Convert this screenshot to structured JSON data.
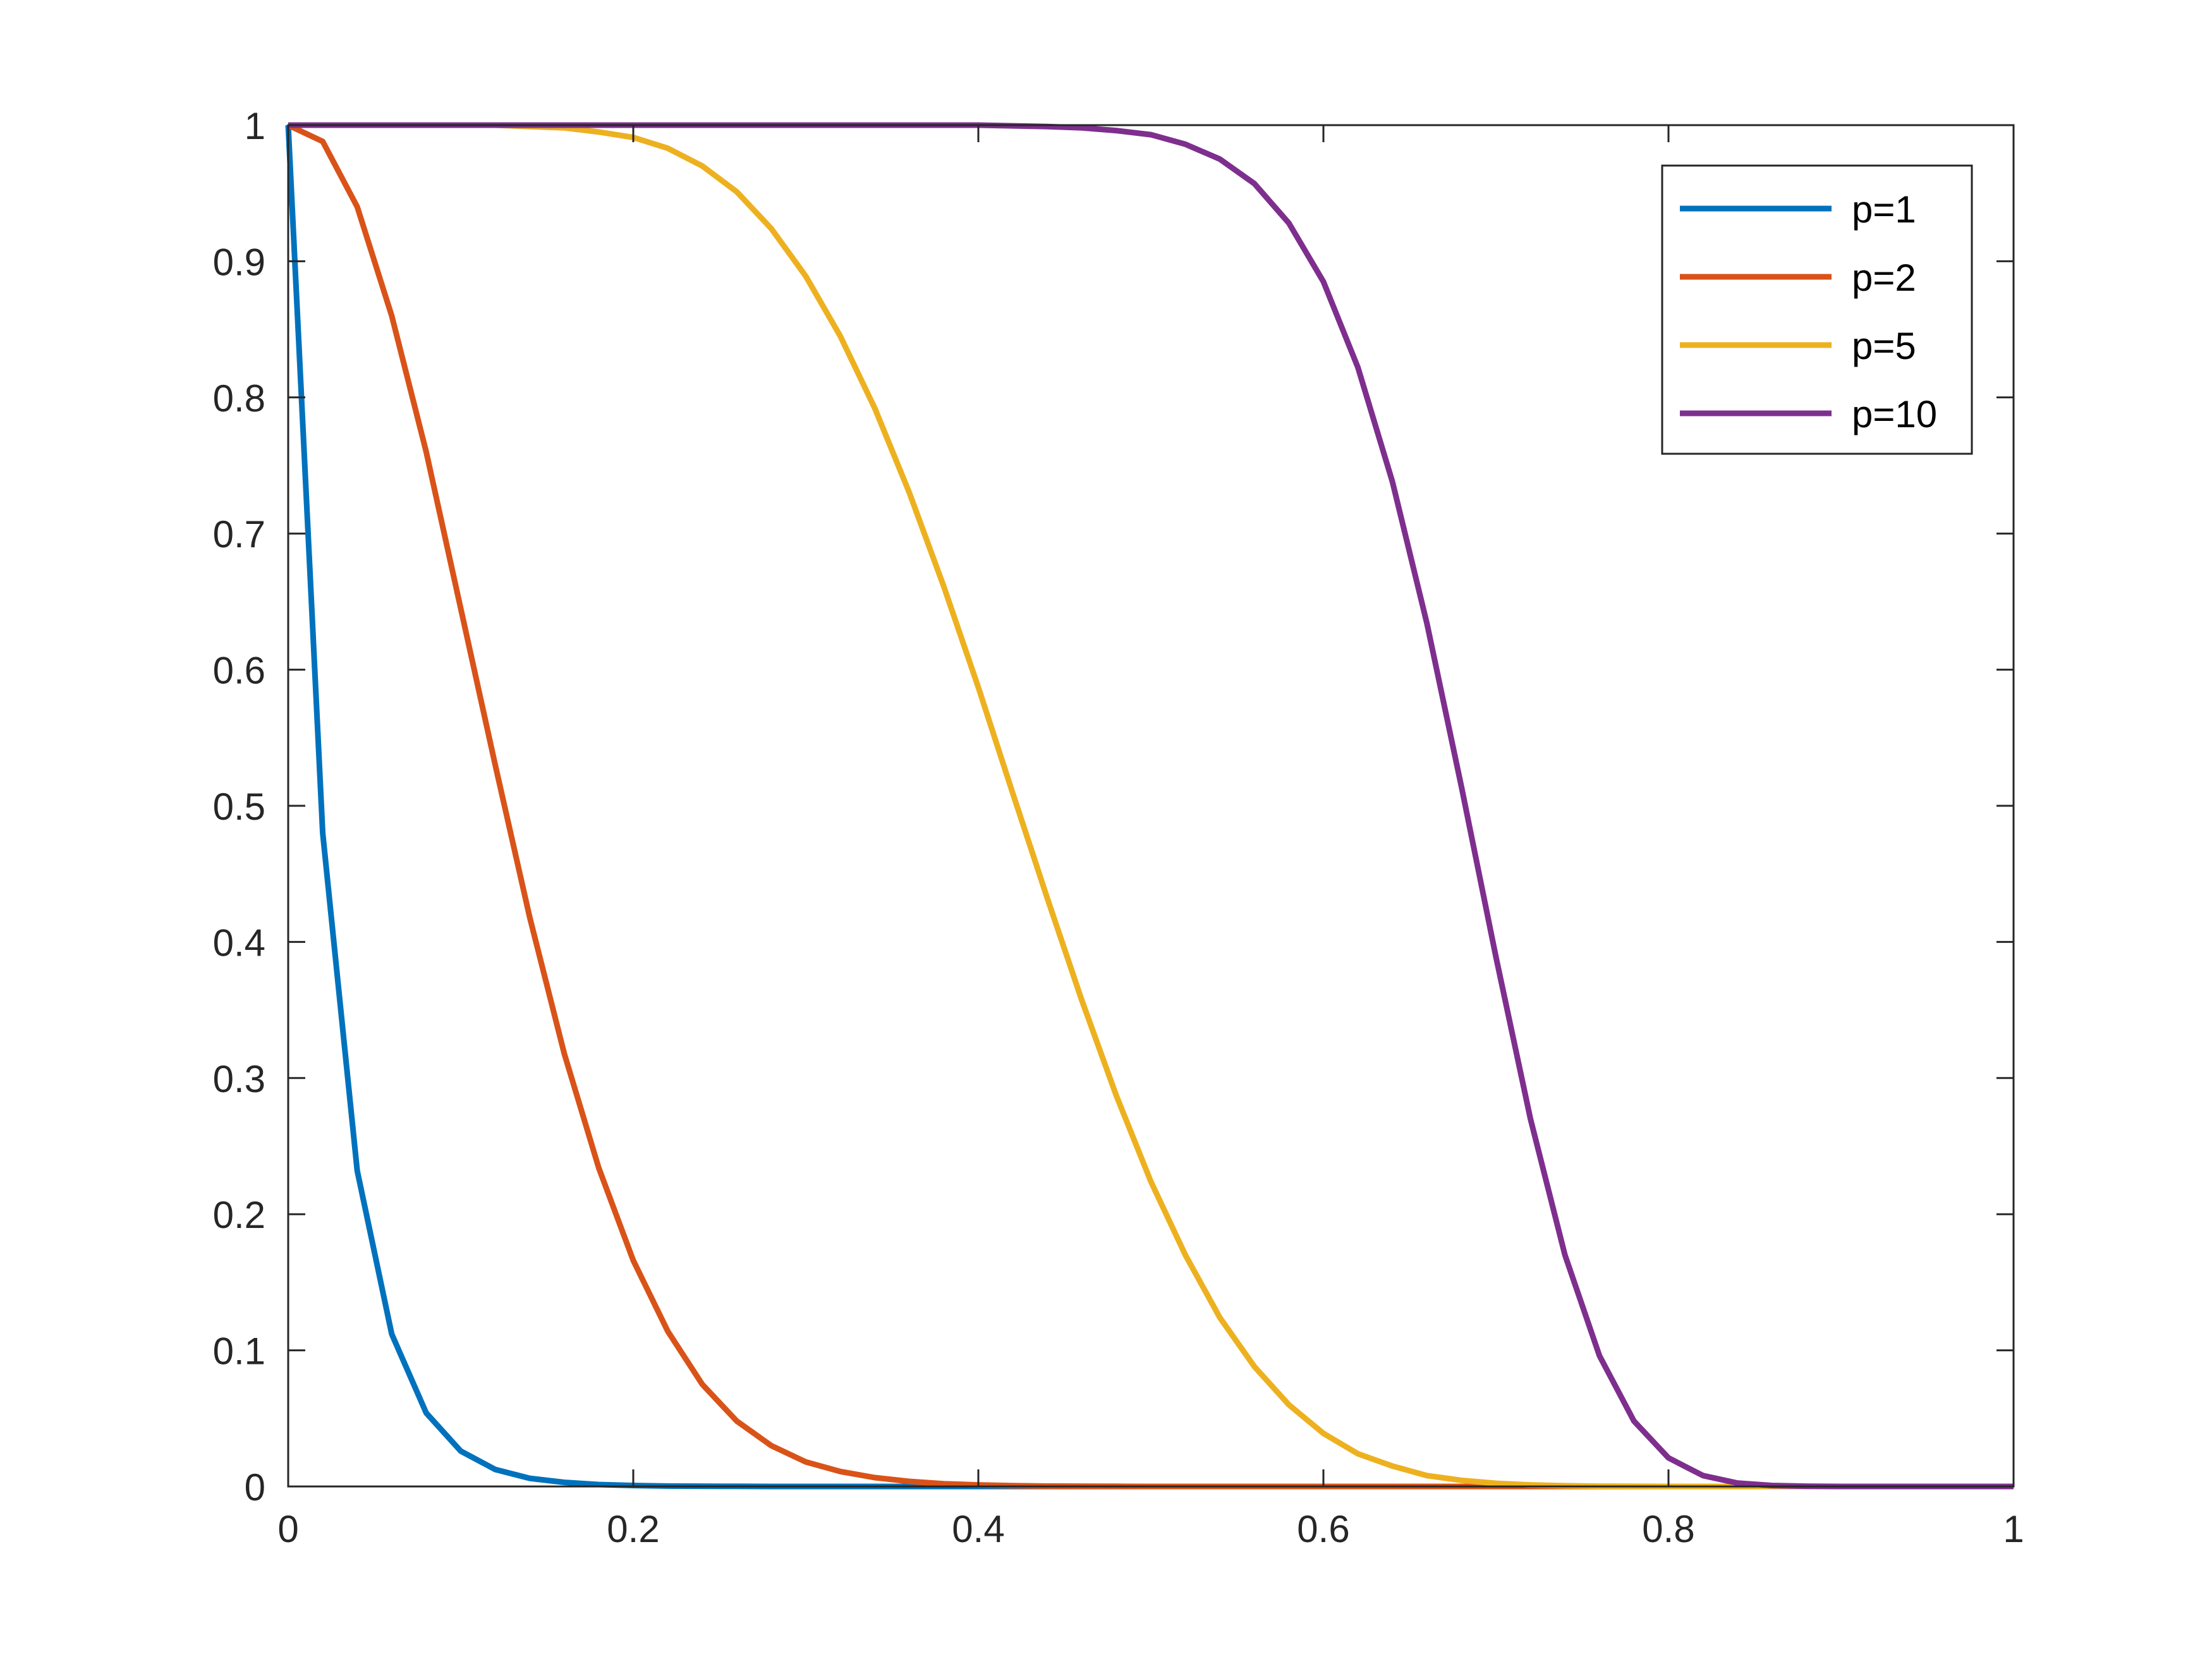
{
  "chart_data": {
    "type": "line",
    "title": "",
    "xlabel": "",
    "ylabel": "",
    "xlim": [
      0,
      1
    ],
    "ylim": [
      0,
      1
    ],
    "x_ticks": [
      "0",
      "0.2",
      "0.4",
      "0.6",
      "0.8",
      "1"
    ],
    "y_ticks": [
      "0",
      "0.1",
      "0.2",
      "0.3",
      "0.4",
      "0.5",
      "0.6",
      "0.7",
      "0.8",
      "0.9",
      "1"
    ],
    "grid": false,
    "legend_placement": "top-right",
    "x": [
      0,
      0.02,
      0.04,
      0.06,
      0.08,
      0.1,
      0.12,
      0.14,
      0.16,
      0.18,
      0.2,
      0.22,
      0.24,
      0.26,
      0.28,
      0.3,
      0.32,
      0.34,
      0.36,
      0.38,
      0.4,
      0.42,
      0.44,
      0.46,
      0.48,
      0.5,
      0.52,
      0.54,
      0.56,
      0.58,
      0.6,
      0.62,
      0.64,
      0.66,
      0.68,
      0.7,
      0.72,
      0.74,
      0.76,
      0.78,
      0.8,
      0.82,
      0.84,
      0.86,
      0.88,
      0.9,
      0.92,
      0.94,
      0.96,
      0.98,
      1
    ],
    "series": [
      {
        "name": "p=1",
        "color": "#0072BD",
        "values": [
          1,
          0.48,
          0.232,
          0.112,
          0.054,
          0.026,
          0.0125,
          0.006,
          0.003,
          0.0014,
          0.0007,
          0.0003,
          0.0002,
          0.0001,
          0,
          0,
          0,
          0,
          0,
          0,
          0,
          0,
          0,
          0,
          0,
          0,
          0,
          0,
          0,
          0,
          0,
          0,
          0,
          0,
          0,
          0,
          0,
          0,
          0,
          0,
          0,
          0,
          0,
          0,
          0,
          0,
          0,
          0,
          0,
          0,
          0
        ]
      },
      {
        "name": "p=2",
        "color": "#D95319",
        "values": [
          1,
          0.988,
          0.94,
          0.86,
          0.76,
          0.645,
          0.53,
          0.418,
          0.318,
          0.234,
          0.166,
          0.114,
          0.075,
          0.048,
          0.03,
          0.018,
          0.011,
          0.0065,
          0.0037,
          0.002,
          0.0011,
          0.0006,
          0.0003,
          0.0002,
          0.0001,
          0,
          0,
          0,
          0,
          0,
          0,
          0,
          0,
          0,
          0,
          0,
          0,
          0,
          0,
          0,
          0,
          0,
          0,
          0,
          0,
          0,
          0,
          0,
          0,
          0,
          0
        ]
      },
      {
        "name": "p=5",
        "color": "#EDB120",
        "values": [
          1,
          1,
          1,
          1,
          1,
          1,
          1,
          0.999,
          0.998,
          0.995,
          0.991,
          0.983,
          0.97,
          0.951,
          0.924,
          0.889,
          0.845,
          0.792,
          0.73,
          0.661,
          0.587,
          0.509,
          0.432,
          0.357,
          0.287,
          0.224,
          0.17,
          0.124,
          0.088,
          0.06,
          0.039,
          0.024,
          0.015,
          0.008,
          0.0045,
          0.0023,
          0.0011,
          0.0005,
          0.0002,
          0.0001,
          0,
          0,
          0,
          0,
          0,
          0,
          0,
          0,
          0,
          0,
          0
        ]
      },
      {
        "name": "p=10",
        "color": "#7E2F8E",
        "values": [
          1,
          1,
          1,
          1,
          1,
          1,
          1,
          1,
          1,
          1,
          1,
          1,
          1,
          1,
          1,
          1,
          1,
          1,
          1,
          1,
          1,
          0.9995,
          0.999,
          0.998,
          0.996,
          0.993,
          0.986,
          0.975,
          0.957,
          0.928,
          0.885,
          0.822,
          0.738,
          0.634,
          0.514,
          0.389,
          0.27,
          0.17,
          0.096,
          0.048,
          0.021,
          0.008,
          0.0025,
          0.0007,
          0.0002,
          0,
          0,
          0,
          0,
          0,
          0
        ]
      }
    ]
  }
}
